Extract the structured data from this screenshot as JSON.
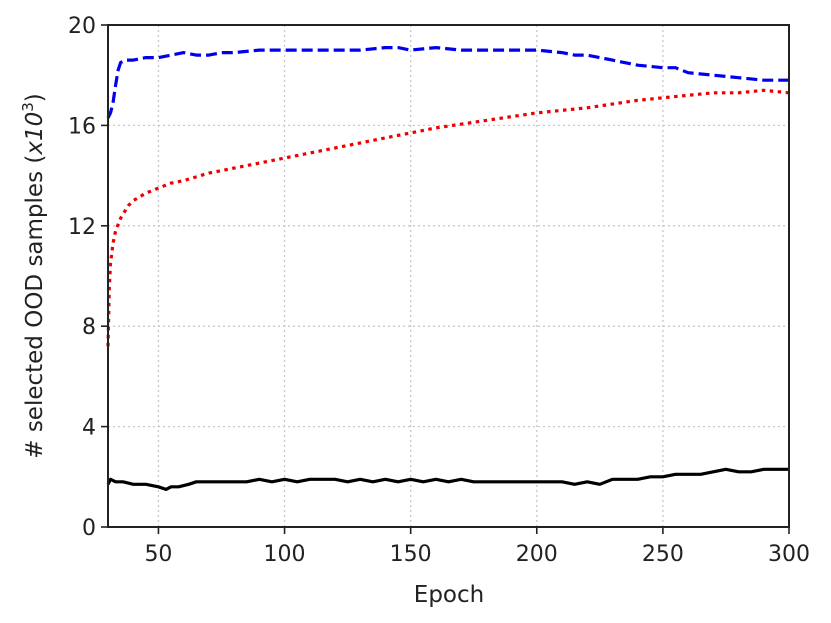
{
  "chart_data": {
    "type": "line",
    "title": "",
    "xlabel": "Epoch",
    "ylabel": "# selected OOD samples (",
    "ylabel_unit": "x10",
    "ylabel_exp": "3",
    "ylabel_close": ")",
    "xlim": [
      30,
      300
    ],
    "ylim": [
      0,
      20
    ],
    "xticks": [
      50,
      100,
      150,
      200,
      250,
      300
    ],
    "yticks": [
      0,
      4,
      8,
      12,
      16,
      20
    ],
    "xtick_labels": [
      "50",
      "100",
      "150",
      "200",
      "250",
      "300"
    ],
    "ytick_labels": [
      "0",
      "4",
      "8",
      "12",
      "16",
      "20"
    ],
    "grid": true,
    "legend": "none",
    "series": [
      {
        "color": "#0000ee",
        "style": "dashed",
        "x": [
          30,
          31,
          32,
          33,
          34,
          35,
          37,
          40,
          45,
          50,
          55,
          60,
          65,
          70,
          75,
          80,
          90,
          100,
          110,
          120,
          130,
          140,
          145,
          150,
          160,
          170,
          180,
          190,
          200,
          210,
          215,
          220,
          225,
          230,
          240,
          250,
          255,
          260,
          270,
          280,
          290,
          300
        ],
        "y": [
          16.3,
          16.5,
          16.9,
          17.6,
          18.2,
          18.5,
          18.6,
          18.6,
          18.7,
          18.7,
          18.8,
          18.9,
          18.8,
          18.8,
          18.9,
          18.9,
          19.0,
          19.0,
          19.0,
          19.0,
          19.0,
          19.1,
          19.1,
          19.0,
          19.1,
          19.0,
          19.0,
          19.0,
          19.0,
          18.9,
          18.8,
          18.8,
          18.7,
          18.6,
          18.4,
          18.3,
          18.3,
          18.1,
          18.0,
          17.9,
          17.8,
          17.8
        ]
      },
      {
        "color": "#ee0000",
        "style": "dotted",
        "x": [
          30,
          30.5,
          31,
          32,
          33,
          35,
          38,
          40,
          45,
          50,
          55,
          60,
          70,
          80,
          90,
          100,
          120,
          140,
          150,
          160,
          180,
          200,
          220,
          240,
          250,
          260,
          270,
          280,
          290,
          300
        ],
        "y": [
          7.2,
          9.5,
          10.5,
          11.3,
          11.8,
          12.3,
          12.8,
          13.0,
          13.3,
          13.5,
          13.7,
          13.8,
          14.1,
          14.3,
          14.5,
          14.7,
          15.1,
          15.5,
          15.7,
          15.9,
          16.2,
          16.5,
          16.7,
          17.0,
          17.1,
          17.2,
          17.3,
          17.3,
          17.4,
          17.3
        ]
      },
      {
        "color": "#000000",
        "style": "solid",
        "x": [
          30,
          31,
          33,
          36,
          40,
          45,
          50,
          53,
          55,
          58,
          62,
          65,
          70,
          75,
          80,
          85,
          90,
          95,
          100,
          105,
          110,
          115,
          120,
          125,
          130,
          135,
          140,
          145,
          150,
          155,
          160,
          165,
          170,
          175,
          180,
          185,
          190,
          195,
          200,
          205,
          210,
          215,
          220,
          225,
          230,
          235,
          240,
          245,
          250,
          255,
          260,
          265,
          270,
          275,
          280,
          285,
          290,
          295,
          300
        ],
        "y": [
          1.7,
          1.9,
          1.8,
          1.8,
          1.7,
          1.7,
          1.6,
          1.5,
          1.6,
          1.6,
          1.7,
          1.8,
          1.8,
          1.8,
          1.8,
          1.8,
          1.9,
          1.8,
          1.9,
          1.8,
          1.9,
          1.9,
          1.9,
          1.8,
          1.9,
          1.8,
          1.9,
          1.8,
          1.9,
          1.8,
          1.9,
          1.8,
          1.9,
          1.8,
          1.8,
          1.8,
          1.8,
          1.8,
          1.8,
          1.8,
          1.8,
          1.7,
          1.8,
          1.7,
          1.9,
          1.9,
          1.9,
          2.0,
          2.0,
          2.1,
          2.1,
          2.1,
          2.2,
          2.3,
          2.2,
          2.2,
          2.3,
          2.3,
          2.3
        ]
      }
    ]
  }
}
